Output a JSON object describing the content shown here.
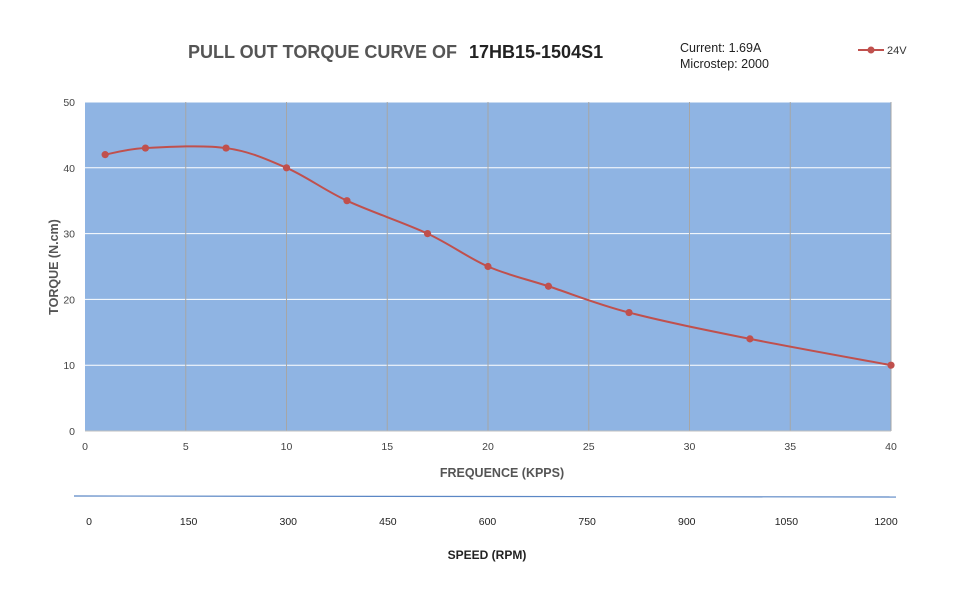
{
  "chart_data": {
    "type": "line",
    "title": "PULL OUT TORQUE CURVE OF",
    "title_model": "17HB15-1504S1",
    "info": [
      "Current: 1.69A",
      "Microstep: 2000"
    ],
    "xlabel": "FREQUENCE (KPPS)",
    "ylabel": "TORQUE (N.cm)",
    "xlim": [
      0,
      40
    ],
    "ylim": [
      0,
      50
    ],
    "x_ticks": [
      "0",
      "5",
      "10",
      "15",
      "20",
      "25",
      "30",
      "35",
      "40"
    ],
    "y_ticks": [
      "0",
      "10",
      "20",
      "30",
      "40",
      "50"
    ],
    "secondary_axis": {
      "label": "SPEED (RPM)",
      "ticks": [
        "0",
        "150",
        "300",
        "450",
        "600",
        "750",
        "900",
        "1050",
        "1200"
      ]
    },
    "grid": true,
    "legend_position": "top-right",
    "plot_background": "#8fb4e3",
    "series": [
      {
        "name": "24V",
        "color": "#c0504d",
        "x": [
          1,
          3,
          7,
          10,
          13,
          17,
          20,
          23,
          27,
          33,
          40
        ],
        "y": [
          42,
          43,
          43,
          40,
          35,
          30,
          25,
          22,
          18,
          14,
          10
        ]
      }
    ]
  }
}
